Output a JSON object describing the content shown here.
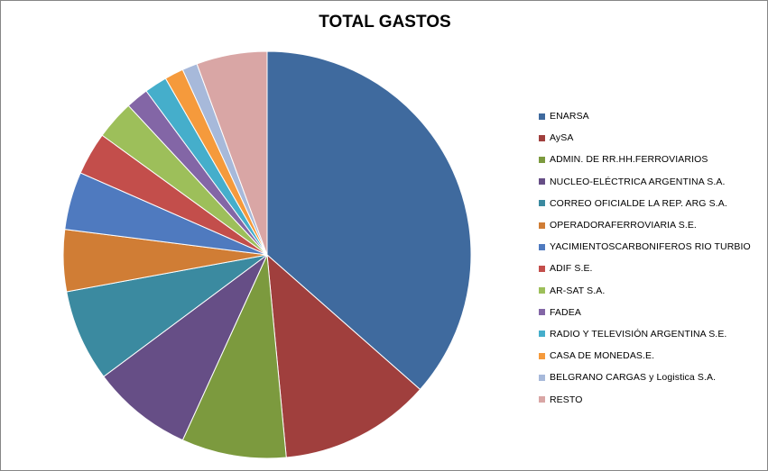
{
  "chart_data": {
    "type": "pie",
    "title": "TOTAL GASTOS",
    "legend_position": "right",
    "slices": [
      {
        "label": "ENARSA",
        "value": 36.5,
        "color": "#3F6A9E"
      },
      {
        "label": "AySA",
        "value": 12.0,
        "color": "#A03F3D"
      },
      {
        "label": "ADMIN. DE RR.HH.FERROVIARIOS",
        "value": 8.3,
        "color": "#7C9A3E"
      },
      {
        "label": "NUCLEO-ELÉCTRICA ARGENTINA S.A.",
        "value": 8.0,
        "color": "#664E86"
      },
      {
        "label": "CORREO OFICIALDE LA REP. ARG S.A.",
        "value": 7.3,
        "color": "#3B8AA0"
      },
      {
        "label": "OPERADORAFERROVIARIA S.E.",
        "value": 4.9,
        "color": "#D07D35"
      },
      {
        "label": "YACIMIENTOSCARBONIFEROS RIO TURBIO",
        "value": 4.6,
        "color": "#4F7ABF"
      },
      {
        "label": "ADIF S.E.",
        "value": 3.4,
        "color": "#C34E4B"
      },
      {
        "label": "AR-SAT S.A.",
        "value": 3.1,
        "color": "#9DBF5A"
      },
      {
        "label": "FADEA",
        "value": 1.8,
        "color": "#8366A6"
      },
      {
        "label": "RADIO Y TELEVISIÓN ARGENTINA S.E.",
        "value": 1.8,
        "color": "#45AECB"
      },
      {
        "label": "CASA DE MONEDAS.E.",
        "value": 1.5,
        "color": "#F59A3C"
      },
      {
        "label": "BELGRANO CARGAS y Logistica S.A.",
        "value": 1.2,
        "color": "#A7B9DA"
      },
      {
        "label": "RESTO",
        "value": 5.6,
        "color": "#D9A6A5"
      }
    ]
  }
}
